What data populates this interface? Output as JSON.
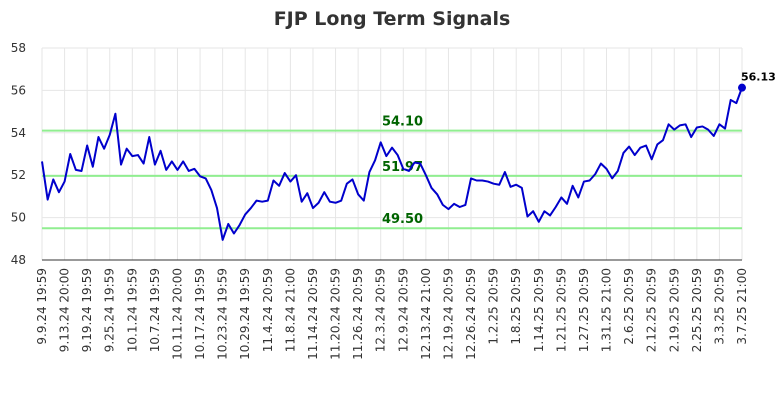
{
  "chart_data": {
    "type": "line",
    "title": "FJP Long Term Signals",
    "xlabel": "",
    "ylabel": "",
    "ylim": [
      48,
      58
    ],
    "y_ticks": [
      48,
      50,
      52,
      54,
      56,
      58
    ],
    "grid": true,
    "x_tick_labels": [
      "9.9.24 19:59",
      "9.13.24 20:00",
      "9.19.24 19:59",
      "9.25.24 19:59",
      "10.1.24 19:59",
      "10.7.24 19:59",
      "10.11.24 20:00",
      "10.17.24 19:59",
      "10.23.24 19:59",
      "10.29.24 19:59",
      "11.4.24 20:59",
      "11.8.24 21:00",
      "11.14.24 20:59",
      "11.20.24 20:59",
      "11.26.24 20:59",
      "12.3.24 20:59",
      "12.9.24 20:59",
      "12.13.24 21:00",
      "12.19.24 20:59",
      "12.26.24 20:59",
      "1.2.25 20:59",
      "1.8.25 20:59",
      "1.14.25 20:59",
      "1.21.25 20:59",
      "1.27.25 20:59",
      "1.31.25 21:00",
      "2.6.25 20:59",
      "2.12.25 20:59",
      "2.19.25 20:59",
      "2.25.25 20:59",
      "3.3.25 20:59",
      "3.7.25 21:00"
    ],
    "series": [
      {
        "color": "#0000cc",
        "values": [
          52.65,
          50.85,
          51.8,
          51.2,
          51.7,
          53.0,
          52.25,
          52.2,
          53.4,
          52.4,
          53.8,
          53.25,
          53.9,
          54.9,
          52.5,
          53.25,
          52.9,
          52.95,
          52.55,
          53.8,
          52.5,
          53.15,
          52.25,
          52.65,
          52.25,
          52.65,
          52.2,
          52.3,
          51.95,
          51.85,
          51.3,
          50.45,
          48.95,
          49.7,
          49.25,
          49.65,
          50.15,
          50.45,
          50.8,
          50.75,
          50.8,
          51.75,
          51.5,
          52.1,
          51.7,
          52.0,
          50.75,
          51.15,
          50.45,
          50.7,
          51.2,
          50.75,
          50.7,
          50.8,
          51.6,
          51.8,
          51.1,
          50.8,
          52.15,
          52.7,
          53.55,
          52.9,
          53.3,
          52.95,
          52.3,
          52.2,
          52.6,
          52.55,
          52.0,
          51.4,
          51.1,
          50.6,
          50.4,
          50.65,
          50.5,
          50.6,
          51.85,
          51.75,
          51.75,
          51.7,
          51.6,
          51.55,
          52.15,
          51.45,
          51.55,
          51.4,
          50.05,
          50.3,
          49.8,
          50.3,
          50.1,
          50.5,
          50.95,
          50.65,
          51.5,
          50.95,
          51.7,
          51.75,
          52.05,
          52.55,
          52.3,
          51.85,
          52.2,
          53.05,
          53.35,
          52.95,
          53.3,
          53.4,
          52.75,
          53.45,
          53.65,
          54.4,
          54.15,
          54.35,
          54.4,
          53.8,
          54.25,
          54.3,
          54.15,
          53.85,
          54.4,
          54.2,
          55.55,
          55.4,
          56.13
        ]
      }
    ],
    "reference_lines": [
      {
        "value": 54.1,
        "label": "54.10",
        "color": "#90ee90",
        "label_color": "#006400"
      },
      {
        "value": 51.97,
        "label": "51.97",
        "color": "#90ee90",
        "label_color": "#006400"
      },
      {
        "value": 49.5,
        "label": "49.50",
        "color": "#90ee90",
        "label_color": "#006400"
      }
    ],
    "last_value_label": "56.13"
  }
}
